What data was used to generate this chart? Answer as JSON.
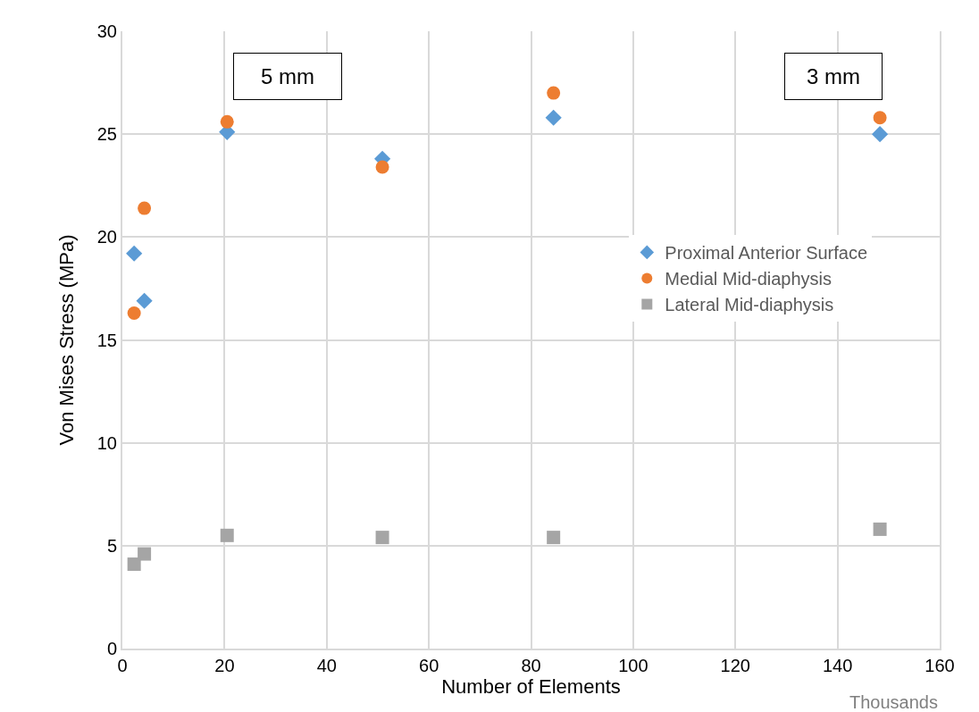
{
  "chart_data": {
    "type": "scatter",
    "xlabel": "Number of Elements",
    "ylabel": "Von Mises Stress (MPa)",
    "annotations": [
      "5 mm",
      "3 mm",
      "Thousands"
    ],
    "x": [
      2.3,
      4.3,
      20.5,
      50.9,
      84.4,
      148.3
    ],
    "series": [
      {
        "name": "Proximal Anterior Surface",
        "color": "#5b9bd5",
        "marker": "diamond",
        "values": [
          19.2,
          16.9,
          25.1,
          23.8,
          25.8,
          25.0
        ]
      },
      {
        "name": "Medial Mid-diaphysis",
        "color": "#ed7d31",
        "marker": "circle",
        "values": [
          16.3,
          21.4,
          25.6,
          23.4,
          27.0,
          25.8
        ]
      },
      {
        "name": "Lateral Mid-diaphysis",
        "color": "#a5a5a5",
        "marker": "square",
        "values": [
          4.1,
          4.6,
          5.5,
          5.4,
          5.4,
          5.8
        ]
      }
    ],
    "xlim": [
      0,
      160
    ],
    "xticks": [
      0,
      20,
      40,
      60,
      80,
      100,
      120,
      140,
      160
    ],
    "ylim": [
      0,
      30
    ],
    "yticks": [
      0,
      5,
      10,
      15,
      20,
      25,
      30
    ],
    "grid": true,
    "legend": "right"
  }
}
